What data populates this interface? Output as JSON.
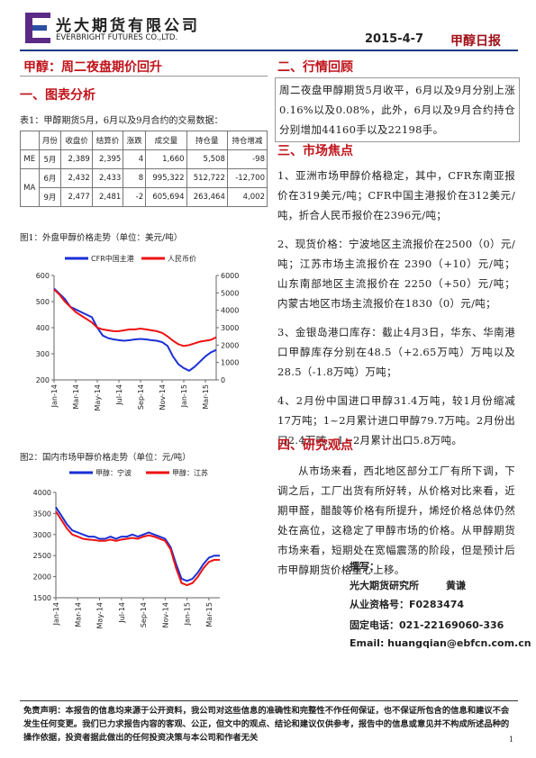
{
  "header": {
    "company": "光大期货有限公司",
    "company_en": "EVERBRIGHT FUTURES CO.,LTD.",
    "date": "2015-4-7",
    "report": "甲醇日报"
  },
  "headline": "甲醇：周二夜盘期价回升",
  "section1": "一、图表分析",
  "table": {
    "caption": "表1：甲醇期货5月，6月以及9月合约的交易数据：",
    "headers": [
      "月份",
      "收盘价",
      "结算价",
      "涨跌",
      "成交量",
      "持仓量",
      "持仓增减"
    ],
    "groups": [
      {
        "name": "ME",
        "rows": [
          [
            "5月",
            "2,389",
            "2,395",
            "4",
            "1,660",
            "5,508",
            "-98"
          ]
        ]
      },
      {
        "name": "MA",
        "rows": [
          [
            "6月",
            "2,432",
            "2,433",
            "8",
            "995,322",
            "512,722",
            "-12,700"
          ],
          [
            "9月",
            "2,477",
            "2,481",
            "-2",
            "605,694",
            "263,464",
            "4,002"
          ]
        ]
      }
    ]
  },
  "chart_data": [
    {
      "type": "line",
      "title": "图1：外盘甲醇价格走势（单位：美元/吨）",
      "categories": [
        "Jan-14",
        null,
        null,
        null,
        "Mar-14",
        null,
        null,
        null,
        "May-14",
        null,
        null,
        null,
        "Jul-14",
        null,
        null,
        null,
        "Sep-14",
        null,
        null,
        null,
        "Nov-14",
        null,
        null,
        null,
        "Jan-15",
        null,
        null,
        null,
        "Mar-15",
        null,
        null
      ],
      "series": [
        {
          "name": "CFR中国主港",
          "color": "#1a2fd6",
          "axis": "y",
          "values": [
            550,
            530,
            510,
            480,
            470,
            460,
            450,
            440,
            400,
            370,
            360,
            355,
            352,
            350,
            352,
            355,
            357,
            355,
            352,
            350,
            345,
            330,
            290,
            260,
            245,
            235,
            250,
            270,
            290,
            305,
            315
          ]
        },
        {
          "name": "人民币价",
          "color": "#ee1111",
          "axis": "y2",
          "values": [
            5200,
            4900,
            4500,
            4200,
            3900,
            3700,
            3500,
            3300,
            3000,
            2900,
            2850,
            2800,
            2800,
            2850,
            2900,
            2900,
            2950,
            2900,
            2850,
            2800,
            2700,
            2500,
            2250,
            2050,
            1950,
            2000,
            2100,
            2200,
            2250,
            2300,
            2450
          ]
        }
      ],
      "ylim": [
        200,
        600
      ],
      "yticks": [
        200,
        300,
        400,
        500,
        600
      ],
      "y2lim": [
        0,
        6000
      ],
      "y2ticks": [
        0,
        1000,
        2000,
        3000,
        4000,
        5000,
        6000
      ],
      "grid": false,
      "legend": "top"
    },
    {
      "type": "line",
      "title": "图2：国内市场甲醇价格走势（单位：元/吨）",
      "categories": [
        "Jan-14",
        null,
        null,
        null,
        "Mar-14",
        null,
        null,
        null,
        "May-14",
        null,
        null,
        null,
        "Jul-14",
        null,
        null,
        null,
        "Sep-14",
        null,
        null,
        null,
        "Nov-14",
        null,
        null,
        null,
        "Jan-15",
        null,
        null,
        null,
        "Mar-15",
        null,
        null
      ],
      "series": [
        {
          "name": "甲醇：宁波",
          "color": "#1a2fd6",
          "axis": "y",
          "values": [
            3650,
            3450,
            3250,
            3100,
            3050,
            3000,
            2950,
            2950,
            2900,
            2900,
            2950,
            2900,
            2950,
            2950,
            3000,
            2950,
            3000,
            3050,
            3000,
            2950,
            2900,
            2700,
            2300,
            1950,
            1900,
            1950,
            2100,
            2300,
            2450,
            2500,
            2500
          ]
        },
        {
          "name": "甲醇：江苏",
          "color": "#ee1111",
          "axis": "y",
          "values": [
            3550,
            3350,
            3150,
            3000,
            2950,
            2900,
            2880,
            2870,
            2850,
            2850,
            2880,
            2850,
            2880,
            2900,
            2920,
            2900,
            2950,
            2980,
            2950,
            2900,
            2850,
            2650,
            2200,
            1850,
            1800,
            1850,
            2000,
            2200,
            2350,
            2400,
            2400
          ]
        }
      ],
      "ylim": [
        1500,
        4000
      ],
      "yticks": [
        1500,
        2000,
        2500,
        3000,
        3500,
        4000
      ],
      "grid": false,
      "legend": "top"
    }
  ],
  "section2": "二、行情回顾",
  "review": "周二夜盘甲醇期货5月收平，6月以及9月分别上涨0.16%以及0.08%，此外，6月以及9月合约持仓分别增加44160手以及22198手。",
  "section3": "三、市场焦点",
  "focus": [
    "1、亚洲市场甲醇价格稳定，其中，CFR东南亚报价在319美元/吨；CFR中国主港报价在312美元/吨，折合人民币报价在2396元/吨；",
    "2、现货价格：宁波地区主流报价在2500（0）元/吨；江苏市场主流报价在 2390（+10）元/吨；山东南部地区主流报价在 2250（+50）元/吨；内蒙古地区市场主流报价在1830（0）元/吨；",
    "3、金银岛港口库存：截止4月3日，华东、华南港口甲醇库存分别在48.5（+2.65万吨）万吨以及28.5（-1.8万吨）万吨；",
    "4、2月份中国进口甲醇31.4万吨，较1月份缩减17万吨；1~2月累计进口甲醇79.7万吨。2月份出口2.4万吨，1~2月累计出口5.8万吨。"
  ],
  "section4": "四、研究观点",
  "opinion": "从市场来看，西北地区部分工厂有所下调，下调之后，工厂出货有所好转，从价格对比来看，近期甲醛，醋酸等价格有所提升，烯烃价格总体仍然处在高位，这稳定了甲醇市场的价格。从甲醇期货市场来看，短期处在宽幅震荡的阶段，但是预计后市甲醇期货价格重心上移。",
  "signature": {
    "label": "撰写：",
    "institute": "光大期货研究所",
    "author": "黄谦",
    "license": "从业资格号：F0283474",
    "phone": "固定电话：021-22169060-336",
    "email": "Email:  huangqian@ebfcn.com.cn"
  },
  "disclaimer": "免责声明：本报告的信息均来源于公开资料，我公司对这些信息的准确性和完整性不作任何保证，也不保证所包含的信息和建议不会发生任何变更。我们已力求报告内容的客观、公正，但文中的观点、结论和建议仅供参考，报告中的信息或意见并不构成所述品种的操作依据，投资者据此做出的任何投资决策与本公司和作者无关",
  "page_number": "1"
}
